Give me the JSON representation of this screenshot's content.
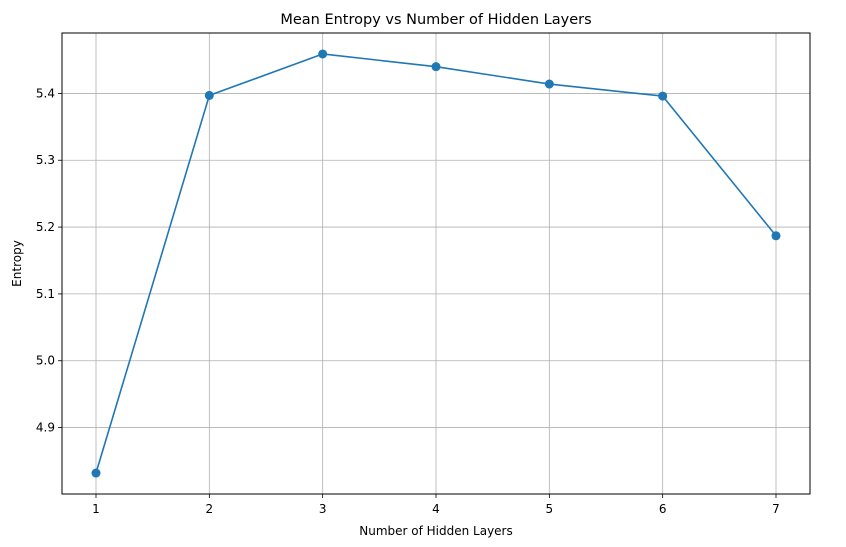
{
  "chart_data": {
    "type": "line",
    "title": "Mean Entropy vs Number of Hidden Layers",
    "xlabel": "Number of Hidden Layers",
    "ylabel": "Entropy",
    "x": [
      1,
      2,
      3,
      4,
      5,
      6,
      7
    ],
    "y": [
      4.832,
      5.397,
      5.459,
      5.44,
      5.414,
      5.396,
      5.187
    ],
    "xticks": [
      "1",
      "2",
      "3",
      "4",
      "5",
      "6",
      "7"
    ],
    "yticks": [
      "4.9",
      "5.0",
      "5.1",
      "5.2",
      "5.3",
      "5.4"
    ],
    "xlim": [
      0.7,
      7.3
    ],
    "ylim": [
      4.8006,
      5.4904
    ],
    "grid": true,
    "marker": "circle",
    "colors": {
      "line": "#1f77b4",
      "grid": "#b0b0b0",
      "axes": "#000000"
    }
  }
}
